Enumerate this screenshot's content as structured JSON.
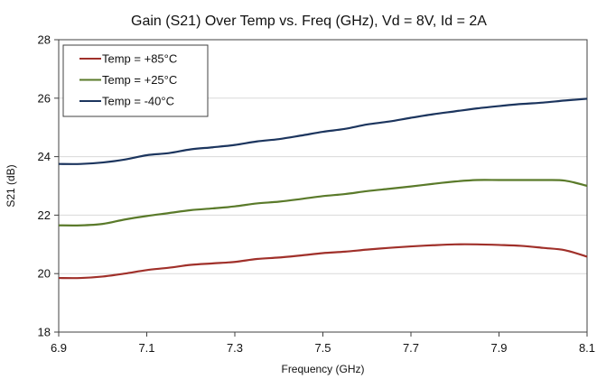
{
  "chart_data": {
    "type": "line",
    "title": "Gain (S21) Over Temp vs. Freq (GHz), Vd = 8V, Id = 2A",
    "xlabel": "Frequency (GHz)",
    "ylabel": "S21 (dB)",
    "xlim": [
      6.9,
      8.1
    ],
    "ylim": [
      18,
      28
    ],
    "xticks": [
      "6.9",
      "7.1",
      "7.3",
      "7.5",
      "7.7",
      "7.9",
      "8.1"
    ],
    "yticks": [
      "18",
      "20",
      "22",
      "24",
      "26",
      "28"
    ],
    "grid": "horizontal",
    "legend_position": "top-left",
    "x": [
      6.9,
      6.95,
      7.0,
      7.05,
      7.1,
      7.15,
      7.2,
      7.25,
      7.3,
      7.35,
      7.4,
      7.45,
      7.5,
      7.55,
      7.6,
      7.65,
      7.7,
      7.75,
      7.8,
      7.85,
      7.9,
      7.95,
      8.0,
      8.05,
      8.1
    ],
    "series": [
      {
        "name": "Temp = +85°C",
        "color": "#a0302a",
        "values": [
          19.85,
          19.85,
          19.9,
          20.0,
          20.12,
          20.2,
          20.3,
          20.35,
          20.4,
          20.5,
          20.55,
          20.62,
          20.7,
          20.75,
          20.82,
          20.88,
          20.93,
          20.97,
          21.0,
          21.0,
          20.98,
          20.95,
          20.88,
          20.8,
          20.58
        ]
      },
      {
        "name": "Temp = +25°C",
        "color": "#5a7a2a",
        "values": [
          21.65,
          21.65,
          21.7,
          21.85,
          21.97,
          22.07,
          22.17,
          22.23,
          22.3,
          22.4,
          22.46,
          22.55,
          22.65,
          22.72,
          22.82,
          22.9,
          22.98,
          23.07,
          23.15,
          23.2,
          23.2,
          23.2,
          23.2,
          23.18,
          23.0
        ]
      },
      {
        "name": "Temp = -40°C",
        "color": "#1c355e",
        "values": [
          23.75,
          23.75,
          23.8,
          23.9,
          24.05,
          24.12,
          24.25,
          24.32,
          24.4,
          24.52,
          24.6,
          24.72,
          24.85,
          24.95,
          25.1,
          25.2,
          25.33,
          25.45,
          25.55,
          25.65,
          25.73,
          25.8,
          25.85,
          25.92,
          25.98
        ]
      }
    ]
  }
}
